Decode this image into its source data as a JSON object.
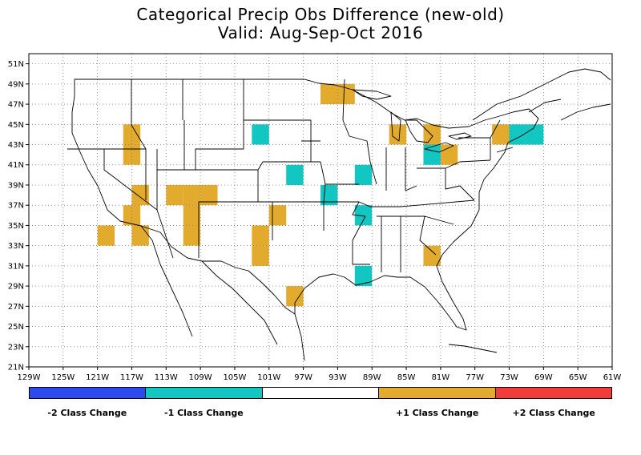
{
  "title_line1": "Categorical Precip Obs Difference (new-old)",
  "title_line2": "Valid: Aug-Sep-Oct 2016",
  "map": {
    "lon_range": [
      -129,
      -61
    ],
    "lat_range": [
      21,
      52
    ],
    "lon_ticks": [
      "129W",
      "125W",
      "121W",
      "117W",
      "113W",
      "109W",
      "105W",
      "101W",
      "97W",
      "93W",
      "89W",
      "85W",
      "81W",
      "77W",
      "73W",
      "69W",
      "65W",
      "61W"
    ],
    "lat_ticks": [
      "21N",
      "23N",
      "25N",
      "27N",
      "29N",
      "31N",
      "33N",
      "35N",
      "37N",
      "39N",
      "41N",
      "43N",
      "45N",
      "47N",
      "49N",
      "51N"
    ],
    "grid": "dotted",
    "colors": {
      "minus2": "#2d49f0",
      "minus1": "#12c6c2",
      "zero": "#ffffff",
      "plus1": "#e3ab2e",
      "plus2": "#f23b3b"
    },
    "cells": [
      {
        "lon": -117,
        "lat": 44,
        "class": 1
      },
      {
        "lon": -117,
        "lat": 42,
        "class": 1
      },
      {
        "lon": -116,
        "lat": 38,
        "class": 1
      },
      {
        "lon": -117,
        "lat": 36,
        "class": 1
      },
      {
        "lon": -120,
        "lat": 34,
        "class": 1
      },
      {
        "lon": -116,
        "lat": 34,
        "class": 1
      },
      {
        "lon": -112,
        "lat": 38,
        "class": 1
      },
      {
        "lon": -110,
        "lat": 38,
        "class": 1
      },
      {
        "lon": -108,
        "lat": 38,
        "class": 1
      },
      {
        "lon": -110,
        "lat": 36,
        "class": 1
      },
      {
        "lon": -110,
        "lat": 34,
        "class": 1
      },
      {
        "lon": -102,
        "lat": 34,
        "class": 1
      },
      {
        "lon": -102,
        "lat": 32,
        "class": 1
      },
      {
        "lon": -100,
        "lat": 36,
        "class": 1
      },
      {
        "lon": -98,
        "lat": 28,
        "class": 1
      },
      {
        "lon": -102,
        "lat": 44,
        "class": -1
      },
      {
        "lon": -98,
        "lat": 40,
        "class": -1
      },
      {
        "lon": -94,
        "lat": 38,
        "class": -1
      },
      {
        "lon": -90,
        "lat": 40,
        "class": -1
      },
      {
        "lon": -90,
        "lat": 36,
        "class": -1
      },
      {
        "lon": -90,
        "lat": 30,
        "class": -1
      },
      {
        "lon": -94,
        "lat": 48,
        "class": 1
      },
      {
        "lon": -92,
        "lat": 48,
        "class": 1
      },
      {
        "lon": -86,
        "lat": 44,
        "class": 1
      },
      {
        "lon": -82,
        "lat": 44,
        "class": 1
      },
      {
        "lon": -82,
        "lat": 42,
        "class": -1
      },
      {
        "lon": -80,
        "lat": 42,
        "class": 1
      },
      {
        "lon": -82,
        "lat": 32,
        "class": 1
      },
      {
        "lon": -74,
        "lat": 44,
        "class": 1
      },
      {
        "lon": -72,
        "lat": 44,
        "class": -1
      },
      {
        "lon": -70,
        "lat": 44,
        "class": -1
      }
    ]
  },
  "legend": {
    "segments": [
      "minus2",
      "minus1",
      "zero",
      "plus1",
      "plus2"
    ],
    "labels": [
      {
        "text": "-2 Class Change",
        "seg_center": 0.5
      },
      {
        "text": "-1 Class Change",
        "seg_center": 1.5
      },
      {
        "text": "+1 Class Change",
        "seg_center": 3.5
      },
      {
        "text": "+2 Class Change",
        "seg_center": 4.5
      }
    ]
  }
}
